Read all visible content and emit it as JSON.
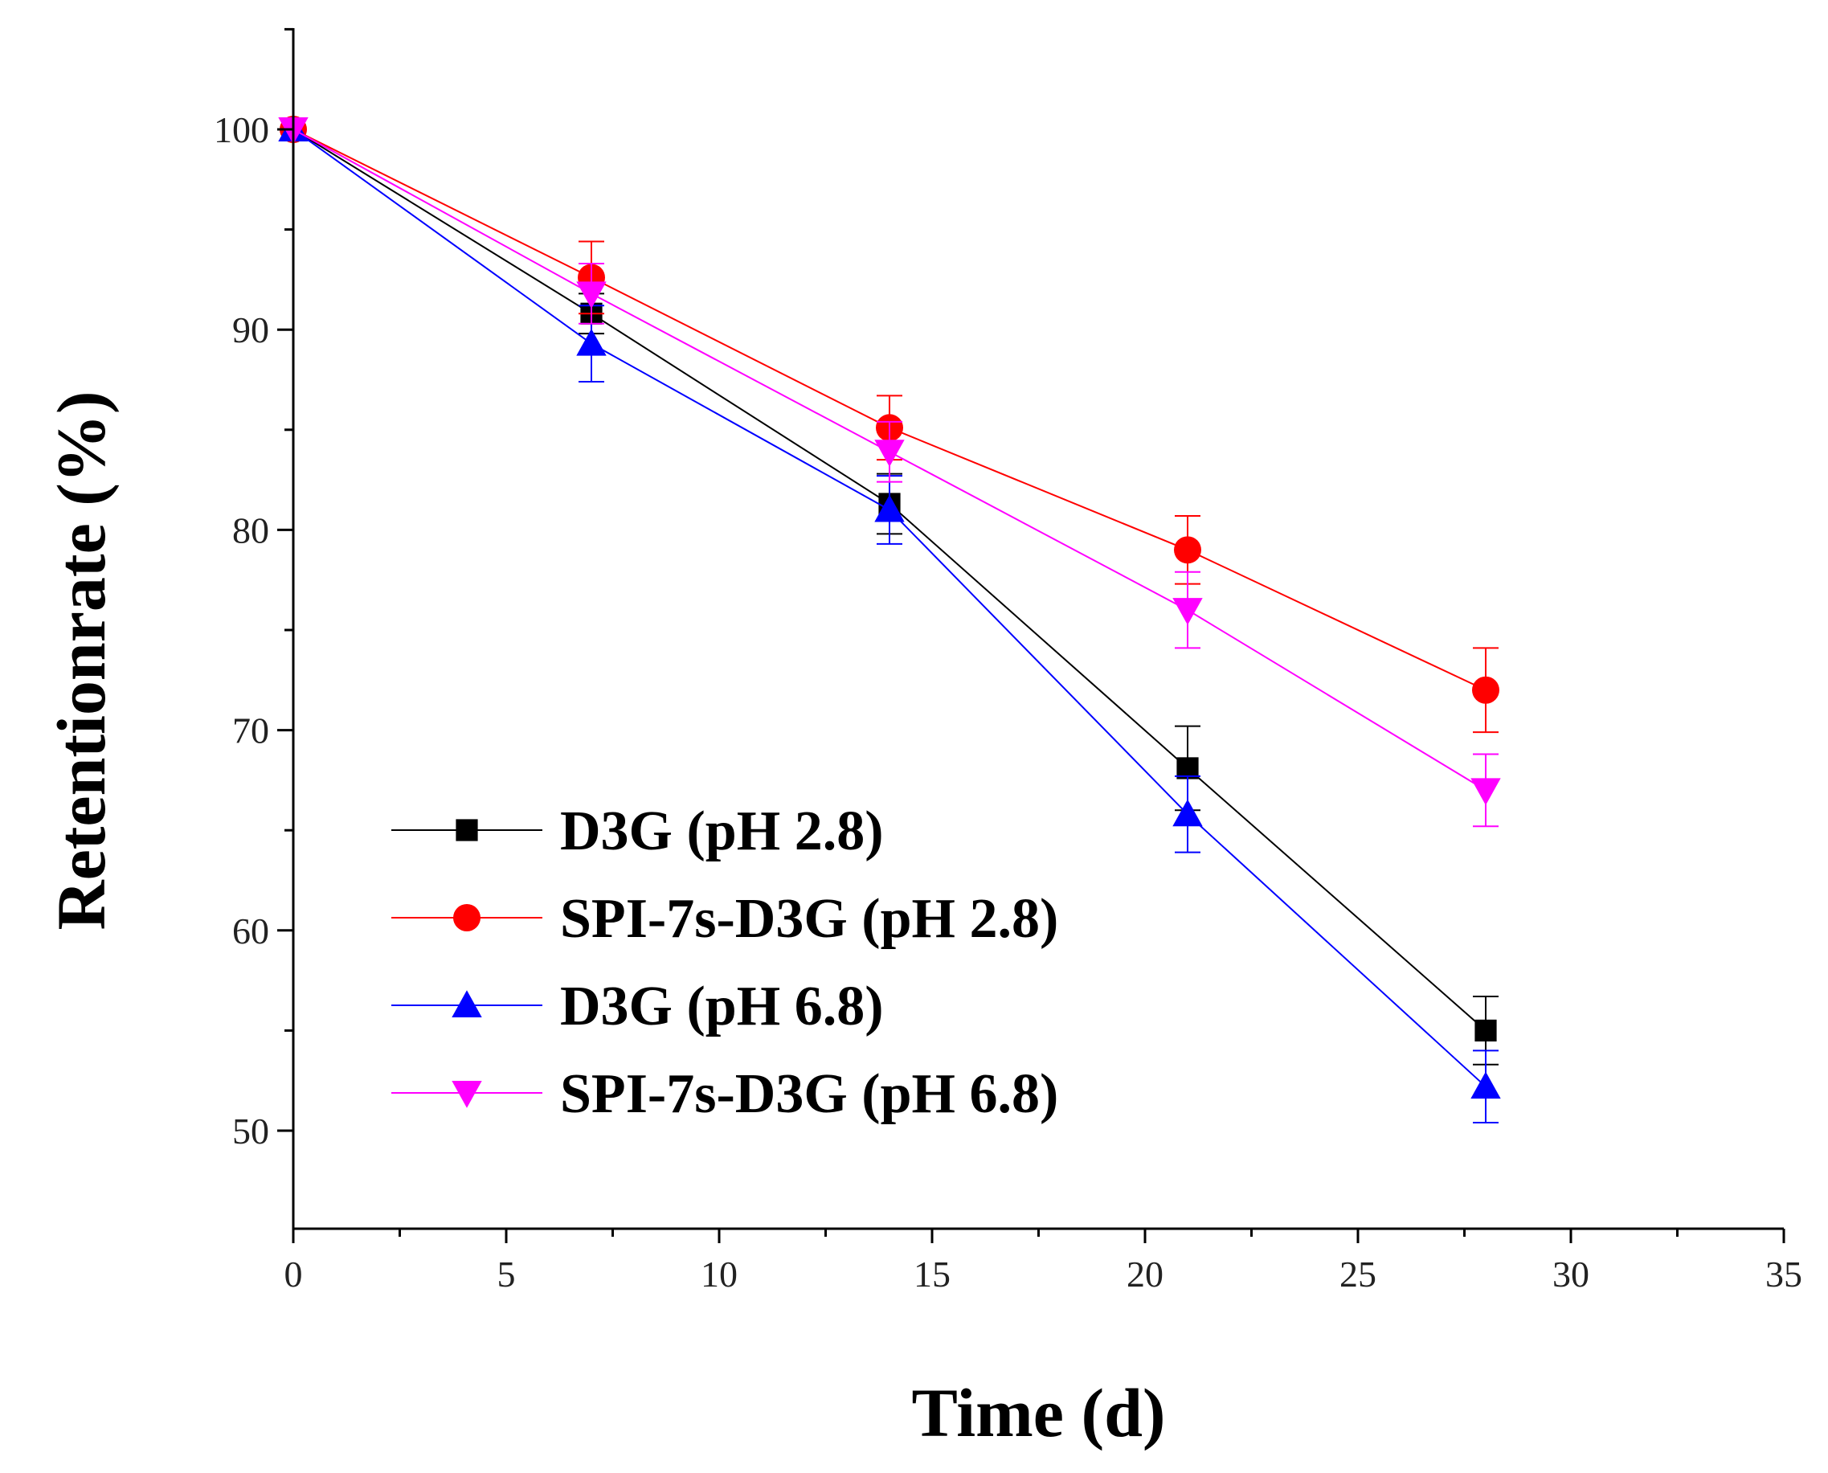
{
  "chart_data": {
    "type": "line",
    "title": "",
    "xlabel": "Time (d)",
    "ylabel": "Retentionrate (%)",
    "xlim": [
      0,
      35
    ],
    "ylim": [
      45,
      105
    ],
    "x_ticks": [
      0,
      5,
      10,
      15,
      20,
      25,
      30,
      35
    ],
    "y_ticks": [
      50,
      60,
      70,
      80,
      90,
      100
    ],
    "grid": false,
    "legend_position": "bottom-left",
    "x": [
      0,
      7,
      14,
      21,
      28
    ],
    "series": [
      {
        "name": "D3G (pH 2.8)",
        "color": "#000000",
        "marker": "square",
        "values": [
          100,
          90.8,
          81.3,
          68.1,
          55.0
        ],
        "errors": [
          0,
          1.0,
          1.5,
          2.1,
          1.7
        ]
      },
      {
        "name": "SPI-7s-D3G (pH 2.8)",
        "color": "#ff0000",
        "marker": "circle",
        "values": [
          100,
          92.6,
          85.1,
          79.0,
          72.0
        ],
        "errors": [
          0,
          1.8,
          1.6,
          1.7,
          2.1
        ]
      },
      {
        "name": "D3G (pH 6.8)",
        "color": "#0000ff",
        "marker": "triangle-up",
        "values": [
          100,
          89.3,
          81.0,
          65.8,
          52.2
        ],
        "errors": [
          0,
          1.9,
          1.7,
          1.9,
          1.8
        ]
      },
      {
        "name": "SPI-7s-D3G (pH 6.8)",
        "color": "#ff00ff",
        "marker": "triangle-down",
        "values": [
          100,
          91.8,
          83.9,
          76.0,
          67.0
        ],
        "errors": [
          0,
          1.5,
          1.5,
          1.9,
          1.8
        ]
      }
    ]
  }
}
